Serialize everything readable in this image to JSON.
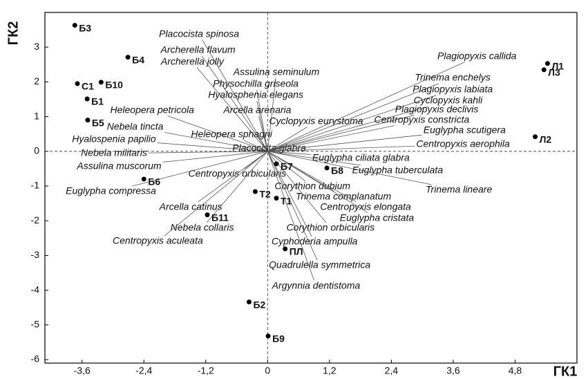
{
  "chart_data": {
    "type": "scatter",
    "x_label": "ГК1",
    "y_label": "ГК2",
    "xlim": [
      -4.32,
      6.0
    ],
    "ylim": [
      -6.1,
      4.0
    ],
    "xticks": [
      {
        "value": -3.6,
        "label": "-3,6"
      },
      {
        "value": -2.4,
        "label": "-2,4"
      },
      {
        "value": -1.2,
        "label": "-1,2"
      },
      0,
      {
        "value": 1.2,
        "label": "1,2"
      },
      {
        "value": 2.4,
        "label": "2,4"
      },
      {
        "value": 3.6,
        "label": "3,6"
      },
      {
        "value": 4.8,
        "label": "4,8"
      }
    ],
    "yticks": [
      3,
      2,
      1,
      0,
      -1,
      -2,
      -3,
      -4,
      -5,
      -6
    ],
    "color": "#000000",
    "vector_color": "#555555",
    "points": {
      "labels": [
        "Б3",
        "Б4",
        "С1",
        "Б10",
        "Б1",
        "Б5",
        "Б6",
        "Б11",
        "Т2",
        "Б7",
        "Б8",
        "Т1",
        "ПЛ",
        "Б2",
        "Б9",
        "Л1",
        "Л3",
        "Л2"
      ],
      "x": [
        -3.74,
        -2.71,
        -3.69,
        -3.23,
        -3.5,
        -3.49,
        -2.4,
        -1.17,
        -0.24,
        0.17,
        1.15,
        0.17,
        0.34,
        -0.36,
        0.01,
        5.43,
        5.36,
        5.19
      ],
      "y": [
        3.63,
        2.71,
        1.95,
        1.99,
        1.51,
        0.9,
        -0.8,
        -1.83,
        -1.16,
        -0.36,
        -0.48,
        -1.35,
        -2.81,
        -4.34,
        -5.32,
        2.53,
        2.35,
        0.42
      ]
    },
    "vectors": {
      "labels": [
        "Placocista spinosa",
        "Archerella flavum",
        "Archerella jolly",
        "Assulina seminulum",
        "Physochilla griseola",
        "Hyalosphenia elegans",
        "Arcella arenaria",
        "Heleopera petricola",
        "Nebela tincta",
        "Heleopera sphagni",
        "Cyclopyxis eurystoma",
        "Hyalospenia papilio",
        "Placocista glabra",
        "Nebela militaris",
        "Assulina muscorum",
        "Centropyxis orbicularis",
        "Euglypha ciliata glabra",
        "Euglypha tuberculata",
        "Euglypha compressa",
        "Corythion dubium",
        "Trinema lineare",
        "Trinema complanatum",
        "Arcella catinus",
        "Centropyxis elongata",
        "Euglypha cristata",
        "Nebela collaris",
        "Corythion orbicularis",
        "Centropyxis aculeata",
        "Cyphoderia ampulla",
        "Quadrulella symmetrica",
        "Argynnia dentistoma",
        "Plagiopyxis callida",
        "Trinema enchelys",
        "Plagiopyxis labiata",
        "Cyclopyxis kahli",
        "Plagiopyxis declivis",
        "Centropyxis constricta",
        "Euglypha scutigera",
        "Centropyxis aerophila"
      ],
      "x": [
        -1.33,
        -1.35,
        -1.46,
        0.17,
        -0.23,
        -0.23,
        -0.2,
        -2.24,
        -2.57,
        -0.7,
        0.94,
        -2.98,
        0.03,
        -2.98,
        -2.88,
        -0.59,
        1.81,
        2.52,
        -3.04,
        0.87,
        3.71,
        1.47,
        -1.49,
        1.9,
        2.12,
        -1.27,
        1.22,
        -2.13,
        0.91,
        1.01,
        0.94,
        4.06,
        3.59,
        3.59,
        3.5,
        3.28,
        2.99,
        3.82,
        3.79
      ],
      "y": [
        3.37,
        2.91,
        2.57,
        2.27,
        1.93,
        1.61,
        1.18,
        1.18,
        0.7,
        0.48,
        0.86,
        0.34,
        0.08,
        -0.06,
        -0.44,
        -0.66,
        -0.2,
        -0.56,
        -1.16,
        -1.02,
        -1.12,
        -1.31,
        -1.61,
        -1.61,
        -1.93,
        -2.21,
        -2.21,
        -2.59,
        -2.61,
        -3.29,
        -3.88,
        2.73,
        2.11,
        1.77,
        1.45,
        1.2,
        0.9,
        0.6,
        0.2
      ]
    }
  }
}
